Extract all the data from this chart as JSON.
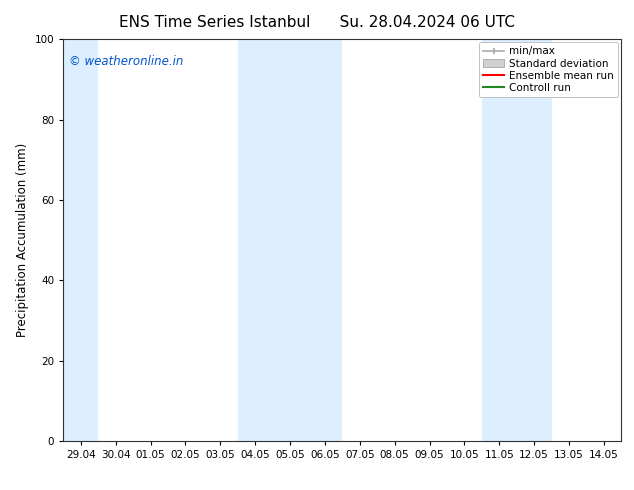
{
  "title_left": "ENS Time Series Istanbul",
  "title_right": "Su. 28.04.2024 06 UTC",
  "ylabel": "Precipitation Accumulation (mm)",
  "ylim": [
    0,
    100
  ],
  "yticks": [
    0,
    20,
    40,
    60,
    80,
    100
  ],
  "xtick_labels": [
    "29.04",
    "30.04",
    "01.05",
    "02.05",
    "03.05",
    "04.05",
    "05.05",
    "06.05",
    "07.05",
    "08.05",
    "09.05",
    "10.05",
    "11.05",
    "12.05",
    "13.05",
    "14.05"
  ],
  "watermark": "© weatheronline.in",
  "watermark_color": "#0055cc",
  "background_color": "#ffffff",
  "plot_bg_color": "#ffffff",
  "band_color": "#ddeeff",
  "legend_items": [
    {
      "label": "min/max"
    },
    {
      "label": "Standard deviation"
    },
    {
      "label": "Ensemble mean run",
      "color": "#ff0000"
    },
    {
      "label": "Controll run",
      "color": "#228822"
    }
  ],
  "title_fontsize": 11,
  "tick_fontsize": 7.5,
  "ylabel_fontsize": 8.5,
  "legend_fontsize": 7.5
}
